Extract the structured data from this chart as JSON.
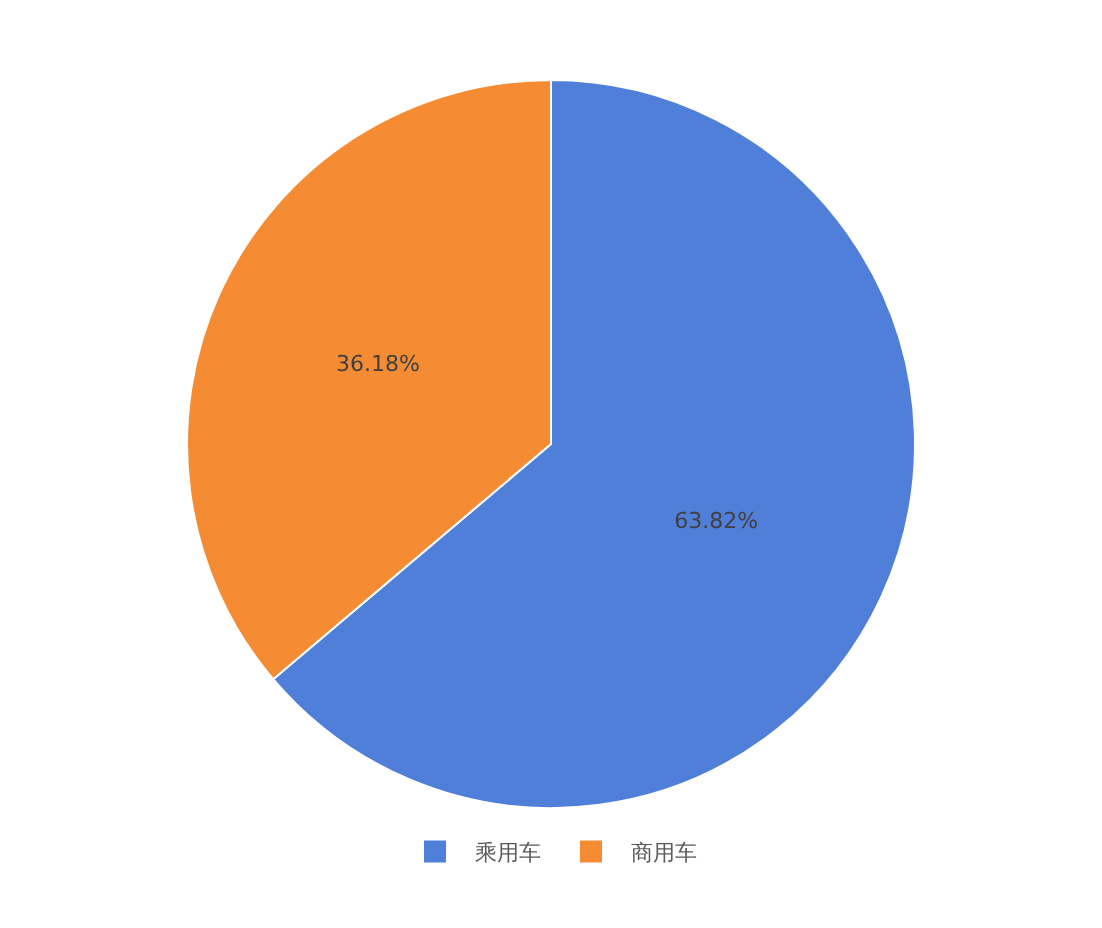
{
  "chart_data": {
    "type": "pie",
    "categories": [
      "乘用车",
      "商用车"
    ],
    "values": [
      63.82,
      36.18
    ],
    "colors": [
      "#4f7fd8",
      "#f58c33"
    ],
    "value_labels": [
      "63.82%",
      "36.18%"
    ],
    "legend": "bottom"
  }
}
